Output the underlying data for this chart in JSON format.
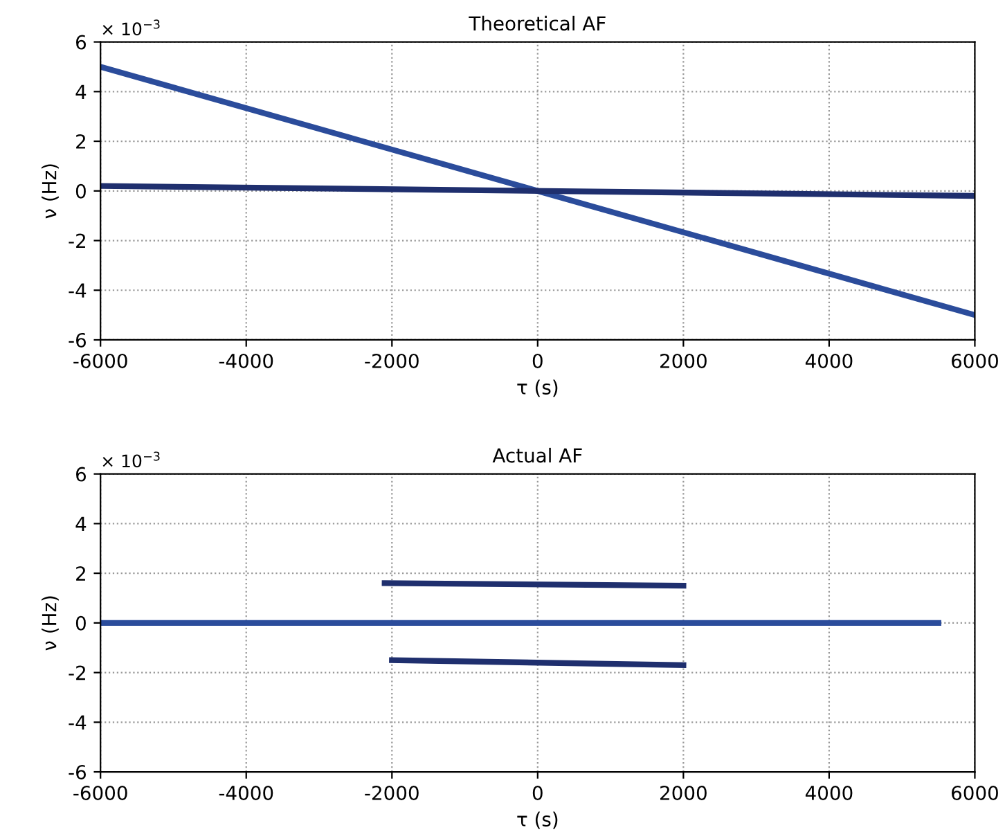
{
  "chart_data": [
    {
      "type": "line",
      "title": "Theoretical AF",
      "xlabel": "τ (s)",
      "ylabel": "ν (Hz)",
      "annotations": [
        "× 10$^{−3}$"
      ],
      "xlim": [
        -6000,
        6000
      ],
      "xticks": [
        -6000,
        -4000,
        -2000,
        0,
        2000,
        4000,
        6000
      ],
      "ylim": [
        -6,
        6
      ],
      "yticks": [
        -6,
        -4,
        -2,
        0,
        2,
        4,
        6
      ],
      "grid": true,
      "line_style": "solid",
      "marker": "none",
      "series": [
        {
          "color": "#2b4c9b",
          "x": [
            -6000,
            6000
          ],
          "values": [
            5,
            -5
          ]
        },
        {
          "color": "#1f2f6e",
          "x": [
            -6000,
            6000
          ],
          "values": [
            0.2,
            -0.2
          ]
        }
      ]
    },
    {
      "type": "line",
      "title": "Actual AF",
      "xlabel": "τ (s)",
      "ylabel": "ν (Hz)",
      "annotations": [
        "× 10$^{−3}$"
      ],
      "xlim": [
        -6000,
        6000
      ],
      "xticks": [
        -6000,
        -4000,
        -2000,
        0,
        2000,
        4000,
        6000
      ],
      "ylim": [
        -6,
        6
      ],
      "yticks": [
        -6,
        -4,
        -2,
        0,
        2,
        4,
        6
      ],
      "grid": true,
      "line_style": "solid",
      "marker": "none",
      "series": [
        {
          "color": "#2b4c9b",
          "x": [
            -6000,
            5500
          ],
          "values": [
            0,
            0
          ]
        },
        {
          "color": "#1f2f6e",
          "x": [
            -2100,
            2000
          ],
          "values": [
            1.6,
            1.5
          ]
        },
        {
          "color": "#1f2f6e",
          "x": [
            -2000,
            2000
          ],
          "values": [
            -1.5,
            -1.7
          ]
        }
      ]
    }
  ]
}
